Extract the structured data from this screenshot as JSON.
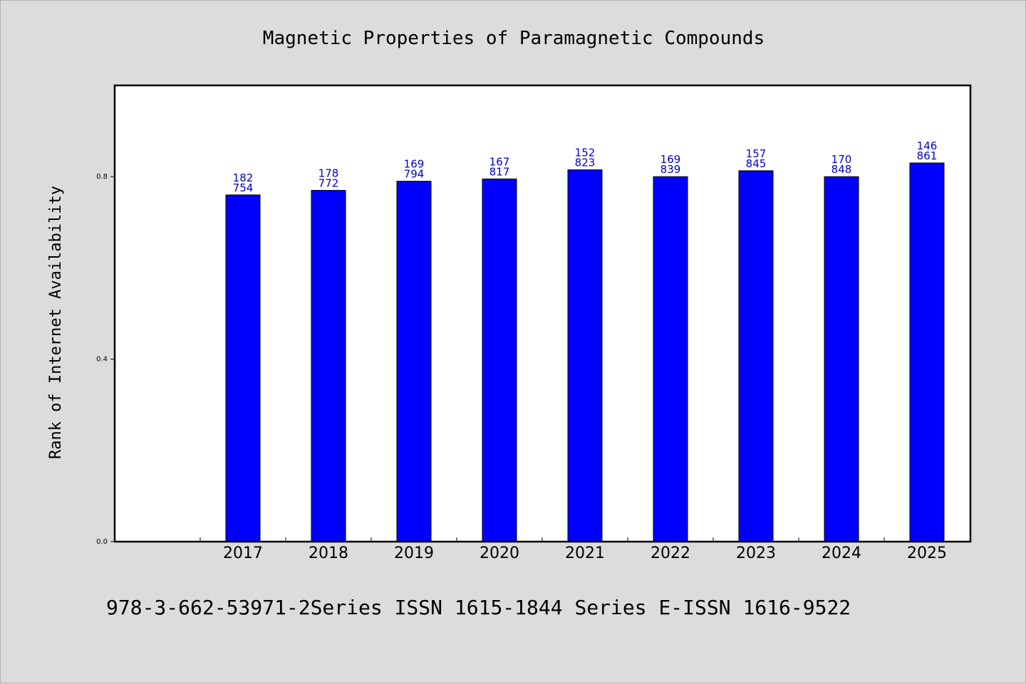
{
  "chart_data": {
    "type": "bar",
    "title": "Magnetic Properties of Paramagnetic Compounds",
    "xlabel": "",
    "ylabel": "Rank of Internet Availability",
    "footer": "978-3-662-53971-2Series ISSN 1615-1844 Series E-ISSN 1616-9522",
    "categories": [
      "2017",
      "2018",
      "2019",
      "2020",
      "2021",
      "2022",
      "2023",
      "2024",
      "2025"
    ],
    "values": [
      0.76,
      0.77,
      0.79,
      0.795,
      0.815,
      0.8,
      0.813,
      0.8,
      0.83
    ],
    "data_labels": [
      [
        "182",
        "754"
      ],
      [
        "178",
        "772"
      ],
      [
        "169",
        "794"
      ],
      [
        "167",
        "817"
      ],
      [
        "152",
        "823"
      ],
      [
        "169",
        "839"
      ],
      [
        "157",
        "845"
      ],
      [
        "170",
        "848"
      ],
      [
        "146",
        "861"
      ]
    ],
    "yticks": [
      "0.0",
      "0.4",
      "0.8"
    ],
    "ytick_values": [
      0.0,
      0.4,
      0.8
    ],
    "ylim": [
      0,
      1.0
    ],
    "grid": false,
    "legend": "none",
    "bar_color": "#0000ff",
    "label_color": "#0000cc"
  }
}
